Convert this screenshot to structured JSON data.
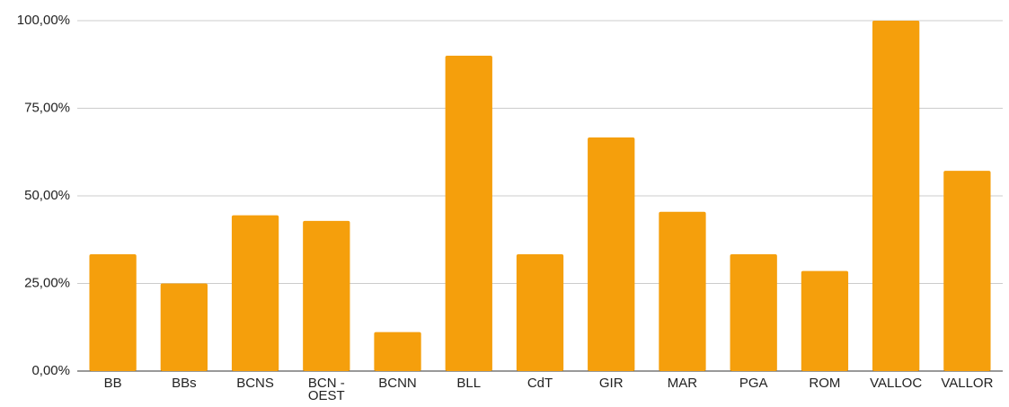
{
  "chart_data": {
    "type": "bar",
    "categories": [
      "BB",
      "BBs",
      "BCNS",
      "BCN - OEST",
      "BCNN",
      "BLL",
      "CdT",
      "GIR",
      "MAR",
      "PGA",
      "ROM",
      "VALLOC",
      "VALLOR"
    ],
    "values": [
      33.33,
      25,
      44.44,
      42.86,
      11.11,
      90,
      33.33,
      66.67,
      45.45,
      33.33,
      28.57,
      100,
      57.14
    ],
    "color": "#f59f0c",
    "ylim": [
      0,
      100
    ],
    "yticks": [
      {
        "value": 0,
        "label": "0,00%"
      },
      {
        "value": 25,
        "label": "25,00%"
      },
      {
        "value": 50,
        "label": "50,00%"
      },
      {
        "value": 75,
        "label": "75,00%"
      },
      {
        "value": 100,
        "label": "100,00%"
      }
    ],
    "grid": true
  }
}
